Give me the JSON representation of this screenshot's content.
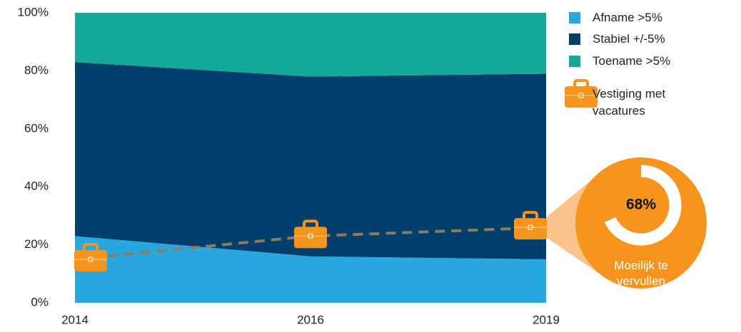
{
  "chart_data": {
    "type": "area",
    "stacked": true,
    "categories": [
      "2014",
      "2016",
      "2019"
    ],
    "series": [
      {
        "name": "Afname >5%",
        "color": "#29a8e0",
        "values": [
          23,
          16,
          15
        ]
      },
      {
        "name": "Stabiel +/-5%",
        "color": "#003f6b",
        "values": [
          60,
          62,
          64
        ]
      },
      {
        "name": "Toename >5%",
        "color": "#12a89a",
        "values": [
          17,
          22,
          21
        ]
      },
      {
        "name": "Vestiging met vacatures",
        "type": "line",
        "color": "#f7941d",
        "line_color": "#8c7b5e",
        "values": [
          15,
          23,
          26
        ]
      }
    ],
    "ylim": [
      0,
      100
    ],
    "yticks": [
      {
        "value": 0,
        "label": "0%"
      },
      {
        "value": 20,
        "label": "20%"
      },
      {
        "value": 40,
        "label": "40%"
      },
      {
        "value": 60,
        "label": "60%"
      },
      {
        "value": 80,
        "label": "80%"
      },
      {
        "value": 100,
        "label": "100%"
      }
    ],
    "callout": {
      "value": 68,
      "value_label": "68%",
      "text": "Moeilijk te vervullen",
      "color": "#f7941d",
      "wedge_color": "#f9c48c"
    }
  }
}
